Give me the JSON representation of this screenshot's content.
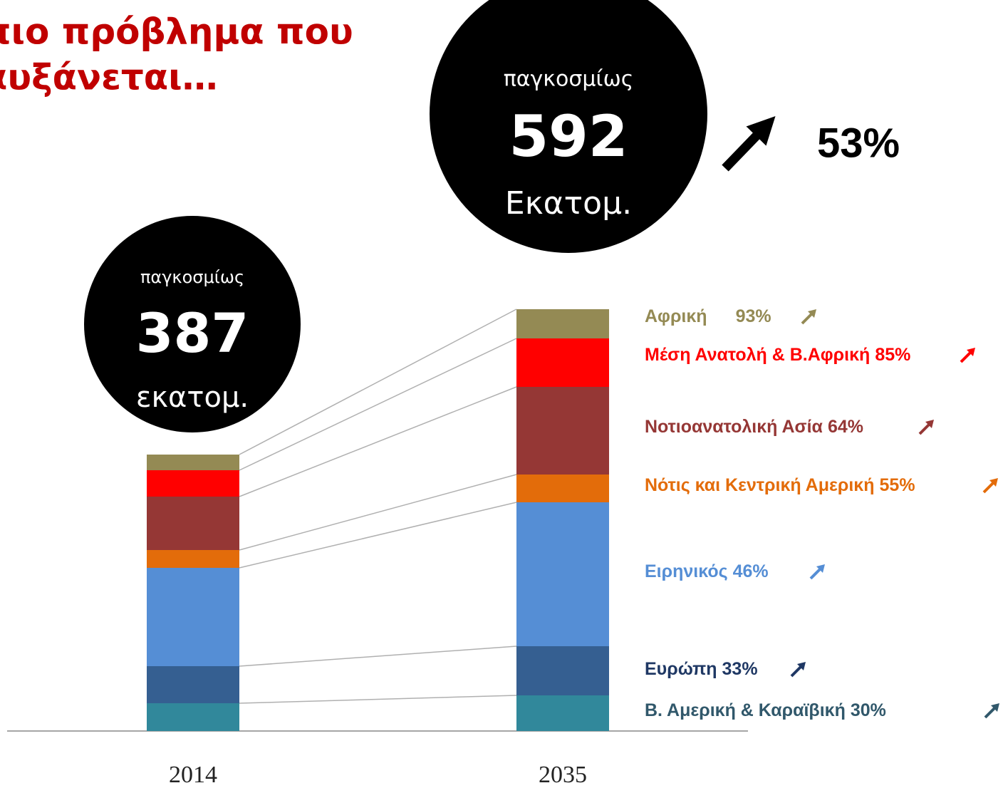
{
  "chart_data": {
    "type": "stacked-bar",
    "title_lines": [
      "πιο πρόβλημα που",
      "αυξάνεται…"
    ],
    "categories": [
      "2014",
      "2035"
    ],
    "totals": [
      {
        "top": "παγκοσμίως",
        "value": 387,
        "unit": "εκατομ."
      },
      {
        "top": "παγκοσμίως",
        "value": 592,
        "unit": "Εκατομ."
      }
    ],
    "growth": "53%",
    "series": [
      {
        "name": "Β. Αμερική & Καραϊβική",
        "growth": "30%",
        "color": "#31889b",
        "label_color": "#31586b",
        "values": [
          39,
          50
        ]
      },
      {
        "name": "Ευρώπη",
        "growth": "33%",
        "color": "#355f91",
        "label_color": "#1f3864",
        "values": [
          52,
          69
        ]
      },
      {
        "name": "Ειρηνικός",
        "growth": "46%",
        "color": "#558ed5",
        "label_color": "#558ed5",
        "values": [
          138,
          202
        ]
      },
      {
        "name": "Νότις και Κεντρική Αμερική",
        "growth": "55%",
        "color": "#e36c0a",
        "label_color": "#e36c0a",
        "values": [
          25,
          39
        ]
      },
      {
        "name": "Νοτιοανατολική Ασία",
        "growth": "64%",
        "color": "#953735",
        "label_color": "#953735",
        "values": [
          75,
          123
        ]
      },
      {
        "name": "Μέση Ανατολή & Β.Αφρική",
        "growth": "85%",
        "color": "#ff0000",
        "label_color": "#ff0000",
        "values": [
          37,
          68
        ]
      },
      {
        "name": "Αφρική",
        "growth": "93%",
        "color": "#948a54",
        "label_color": "#948a54",
        "values": [
          22,
          41
        ]
      }
    ]
  }
}
